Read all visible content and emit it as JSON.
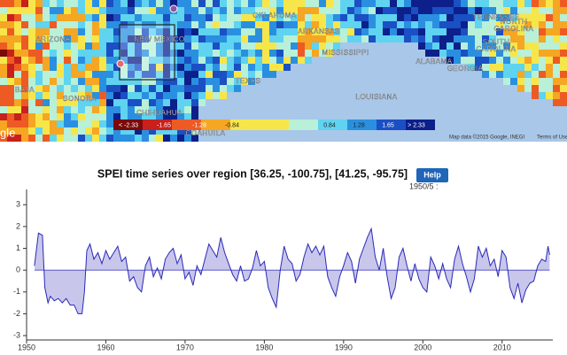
{
  "map": {
    "labels": [
      "OKLAHOMA",
      "TENNESSEE",
      "ARIZONA",
      "NEW MEXICO",
      "ARKANSAS",
      "NORTH",
      "CAROLINA",
      "MISSISSIPPI",
      "SOUTH",
      "CAROLINA",
      "ALABAMA",
      "GEORGIA",
      "TEXAS",
      "LOUISIANA",
      "SONORA",
      "CHIHUAHUA",
      "COAHUILA",
      "BAJA"
    ],
    "attribution": "Map data ©2015 Google, INEGI",
    "terms": "Terms of Use",
    "logo": "gle",
    "legend": [
      "< -2.33",
      "-1.65",
      "-1.28",
      "-0.84",
      "0.84",
      "1.28",
      "1.65",
      "> 2.33"
    ]
  },
  "panel": {
    "help": "Help",
    "cursor": "1950/5 :"
  },
  "chart_data": {
    "type": "line",
    "title": "SPEI time series over region [36.25, -100.75], [41.25, -95.75]",
    "color": "#2a2ab8",
    "fill_color": "#c9c6ec",
    "x": [
      1951,
      1951.5,
      1952,
      1952.3,
      1952.7,
      1953,
      1953.5,
      1954,
      1954.5,
      1955,
      1955.5,
      1956,
      1956.5,
      1957,
      1957.3,
      1957.6,
      1958,
      1958.5,
      1959,
      1959.5,
      1960,
      1960.5,
      1961,
      1961.5,
      1962,
      1962.5,
      1963,
      1963.5,
      1964,
      1964.5,
      1965,
      1965.5,
      1966,
      1966.5,
      1967,
      1967.5,
      1968,
      1968.5,
      1969,
      1969.5,
      1970,
      1970.5,
      1971,
      1971.5,
      1972,
      1972.5,
      1973,
      1973.5,
      1974,
      1974.5,
      1975,
      1975.5,
      1976,
      1976.5,
      1977,
      1977.5,
      1978,
      1978.5,
      1979,
      1979.5,
      1980,
      1980.5,
      1981,
      1981.5,
      1982,
      1982.5,
      1983,
      1983.5,
      1984,
      1984.5,
      1985,
      1985.5,
      1986,
      1986.5,
      1987,
      1987.5,
      1988,
      1988.5,
      1989,
      1989.5,
      1990,
      1990.5,
      1991,
      1991.5,
      1992,
      1992.5,
      1993,
      1993.5,
      1994,
      1994.5,
      1995,
      1995.5,
      1996,
      1996.5,
      1997,
      1997.5,
      1998,
      1998.5,
      1999,
      1999.5,
      2000,
      2000.5,
      2001,
      2001.5,
      2002,
      2002.5,
      2003,
      2003.5,
      2004,
      2004.5,
      2005,
      2005.5,
      2006,
      2006.5,
      2007,
      2007.5,
      2008,
      2008.5,
      2009,
      2009.5,
      2010,
      2010.5,
      2011,
      2011.5,
      2012,
      2012.5,
      2013,
      2013.5,
      2014,
      2014.5,
      2015,
      2015.5,
      2015.8,
      2016
    ],
    "values": [
      0.2,
      1.7,
      1.6,
      -0.8,
      -1.5,
      -1.2,
      -1.4,
      -1.3,
      -1.5,
      -1.3,
      -1.6,
      -1.6,
      -2.0,
      -2.0,
      -1.0,
      0.9,
      1.2,
      0.5,
      0.8,
      0.3,
      0.9,
      0.5,
      0.8,
      1.1,
      0.4,
      0.6,
      -0.5,
      -0.3,
      -0.8,
      -1.0,
      0.2,
      0.6,
      -0.3,
      0.1,
      -0.4,
      0.5,
      0.8,
      1.0,
      0.3,
      0.7,
      -0.4,
      -0.1,
      -0.7,
      0.2,
      -0.2,
      0.5,
      1.2,
      0.9,
      0.6,
      1.5,
      0.8,
      0.3,
      -0.2,
      -0.5,
      0.2,
      -0.5,
      -0.4,
      0.1,
      0.9,
      0.2,
      0.4,
      -0.8,
      -1.3,
      -1.7,
      0.0,
      1.1,
      0.5,
      0.3,
      -0.5,
      -0.2,
      0.6,
      1.2,
      0.8,
      1.1,
      0.7,
      1.1,
      -0.3,
      -0.8,
      -1.2,
      -0.3,
      0.2,
      0.8,
      0.4,
      -0.6,
      0.5,
      1.0,
      1.5,
      1.9,
      0.6,
      0.0,
      1.0,
      -0.3,
      -1.3,
      -0.8,
      0.6,
      1.0,
      0.2,
      -0.5,
      0.3,
      -0.4,
      -0.8,
      -1.0,
      0.6,
      0.2,
      -0.4,
      0.3,
      -0.4,
      -0.8,
      0.5,
      1.1,
      0.3,
      -0.3,
      -1.0,
      -0.4,
      1.1,
      0.6,
      1.0,
      0.2,
      0.5,
      -0.3,
      0.9,
      0.6,
      -0.8,
      -1.3,
      -0.6,
      -1.5,
      -0.9,
      -0.6,
      -0.5,
      0.2,
      0.5,
      0.4,
      1.1,
      0.7
    ],
    "xlim": [
      1950,
      2016.4
    ],
    "xticks": [
      1950,
      1960,
      1970,
      1980,
      1990,
      2000,
      2010
    ],
    "ylim": [
      -3.2,
      3.7
    ],
    "yticks": [
      -3,
      -2,
      -1,
      0,
      1,
      2,
      3
    ]
  }
}
